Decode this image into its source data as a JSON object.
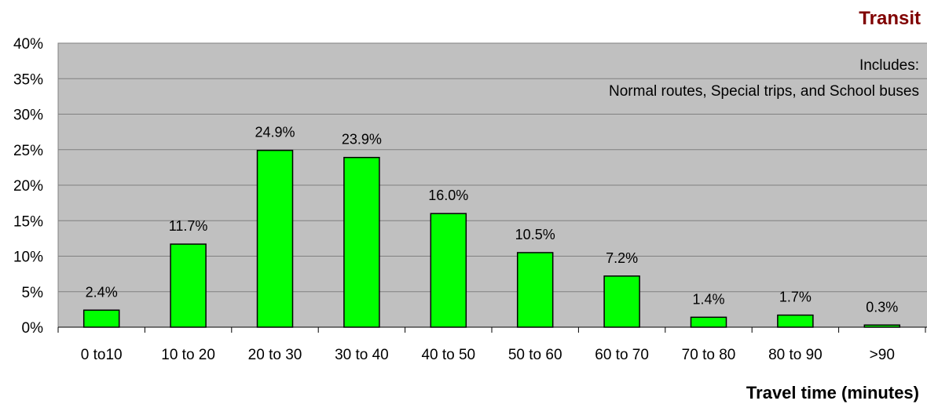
{
  "colors": {
    "plot_background": "#c0c0c0",
    "bar_fill": "#00ff00",
    "bar_stroke": "#000000",
    "title": "#800000",
    "gridline": "#808080"
  },
  "chart_data": {
    "type": "bar",
    "title": "Transit",
    "xlabel": "Travel time (minutes)",
    "ylabel": "",
    "categories": [
      "0 to10",
      "10 to 20",
      "20 to 30",
      "30 to 40",
      "40 to 50",
      "50 to 60",
      "60 to 70",
      "70 to 80",
      "80 to 90",
      ">90"
    ],
    "values": [
      2.4,
      11.7,
      24.9,
      23.9,
      16.0,
      10.5,
      7.2,
      1.4,
      1.7,
      0.3
    ],
    "data_labels": [
      "2.4%",
      "11.7%",
      "24.9%",
      "23.9%",
      "16.0%",
      "10.5%",
      "7.2%",
      "1.4%",
      "1.7%",
      "0.3%"
    ],
    "ylim": [
      0,
      40
    ],
    "yticks": [
      0,
      5,
      10,
      15,
      20,
      25,
      30,
      35,
      40
    ],
    "ytick_labels": [
      "0%",
      "5%",
      "10%",
      "15%",
      "20%",
      "25%",
      "30%",
      "35%",
      "40%"
    ],
    "grid": true,
    "annotations": [
      "Includes:",
      "Normal routes, Special trips, and School buses"
    ]
  }
}
